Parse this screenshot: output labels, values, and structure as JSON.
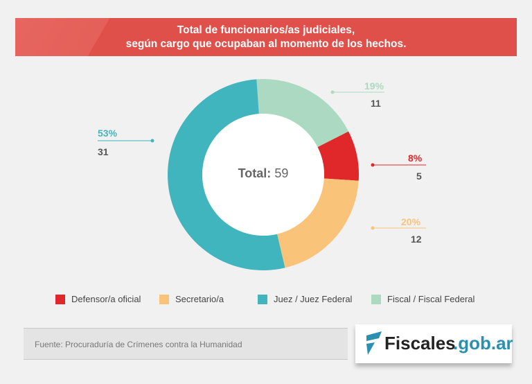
{
  "chart_data": {
    "type": "pie",
    "title": "Total de funcionarios/as judiciales,\nsegún cargo que ocupaban al momento de los hechos.",
    "title_lines": [
      "Total de funcionarios/as judiciales,",
      "según cargo que ocupaban al momento de los hechos."
    ],
    "center_label": "Total:",
    "total": "59",
    "slices": [
      {
        "name": "Fiscal / Fiscal Federal",
        "value": 11,
        "percent": "19%",
        "color": "#acd9c1"
      },
      {
        "name": "Defensor/a oficial",
        "value": 5,
        "percent": "8%",
        "color": "#e0282a"
      },
      {
        "name": "Secretario/a",
        "value": 12,
        "percent": "20%",
        "color": "#f9c47a"
      },
      {
        "name": "Juez / Juez Federal",
        "value": 31,
        "percent": "53%",
        "color": "#41b5bd"
      }
    ],
    "legend_order": [
      1,
      2,
      3,
      0
    ],
    "legend_placement": "bottom"
  },
  "source": "Fuente: Procuraduría de Crímenes contra la Humanidad",
  "logo": {
    "part1": "Fiscales",
    "part2": ".gob.ar"
  }
}
